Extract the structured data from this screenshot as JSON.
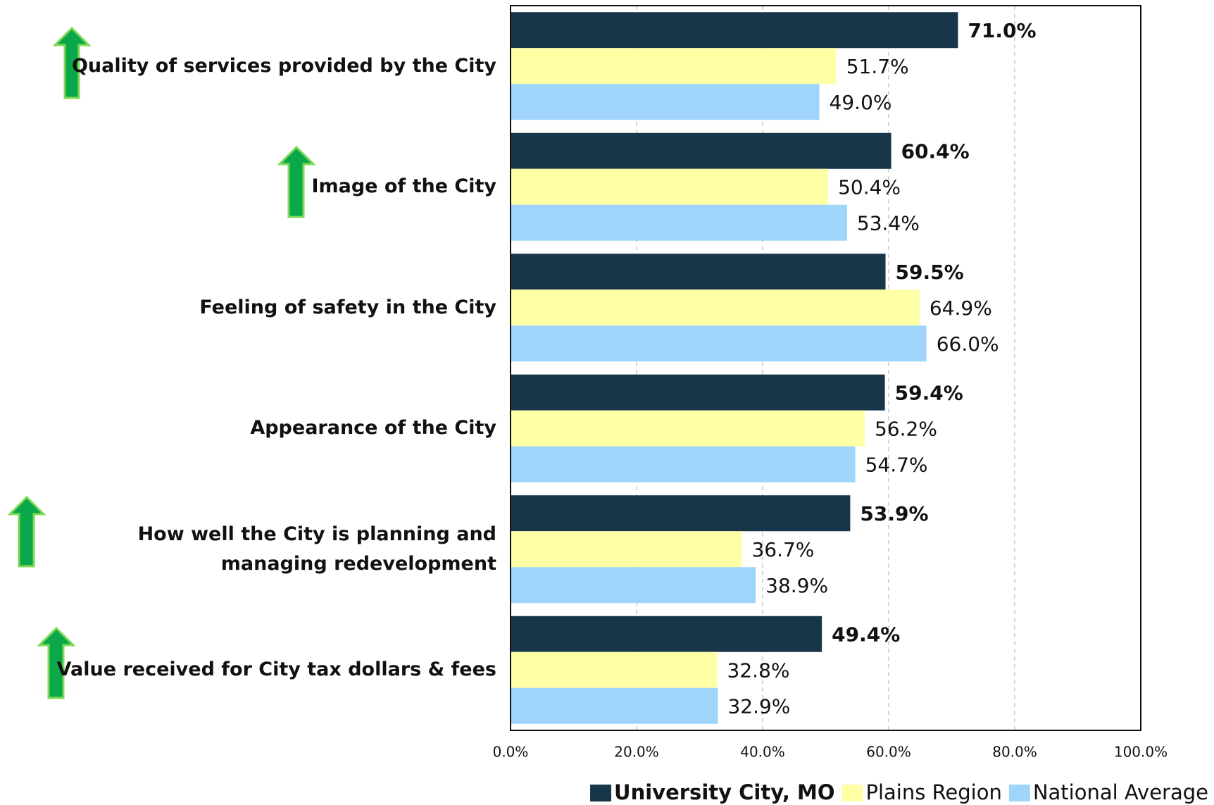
{
  "chart_data": {
    "type": "bar",
    "orientation": "horizontal",
    "categories": [
      "Quality of services provided by the City",
      "Image of the City",
      "Feeling of safety in the City",
      "Appearance of the City",
      "How well the City is planning and managing redevelopment",
      "Value received for City tax dollars & fees"
    ],
    "series": [
      {
        "name": "University City, MO",
        "color": "#17364a",
        "values": [
          71.0,
          60.4,
          59.5,
          59.4,
          53.9,
          49.4
        ],
        "value_labels": [
          "71.0%",
          "60.4%",
          "59.5%",
          "59.4%",
          "53.9%",
          "49.4%"
        ]
      },
      {
        "name": "Plains Region",
        "color": "#ffffa6",
        "values": [
          51.7,
          50.4,
          64.9,
          56.2,
          36.7,
          32.8
        ],
        "value_labels": [
          "51.7%",
          "50.4%",
          "64.9%",
          "56.2%",
          "36.7%",
          "32.8%"
        ]
      },
      {
        "name": "National Average",
        "color": "#9fd5fa",
        "values": [
          49.0,
          53.4,
          66.0,
          54.7,
          38.9,
          32.9
        ],
        "value_labels": [
          "49.0%",
          "53.4%",
          "66.0%",
          "54.7%",
          "38.9%",
          "32.9%"
        ]
      }
    ],
    "xlim": [
      0,
      100
    ],
    "xticks": [
      {
        "value": 0,
        "label": "0.0%"
      },
      {
        "value": 20,
        "label": "20.0%"
      },
      {
        "value": 40,
        "label": "40.0%"
      },
      {
        "value": 60,
        "label": "60.0%"
      },
      {
        "value": 80,
        "label": "80.0%"
      },
      {
        "value": 100,
        "label": "100.0%"
      }
    ],
    "grid": true,
    "legend": "bottom-right"
  }
}
